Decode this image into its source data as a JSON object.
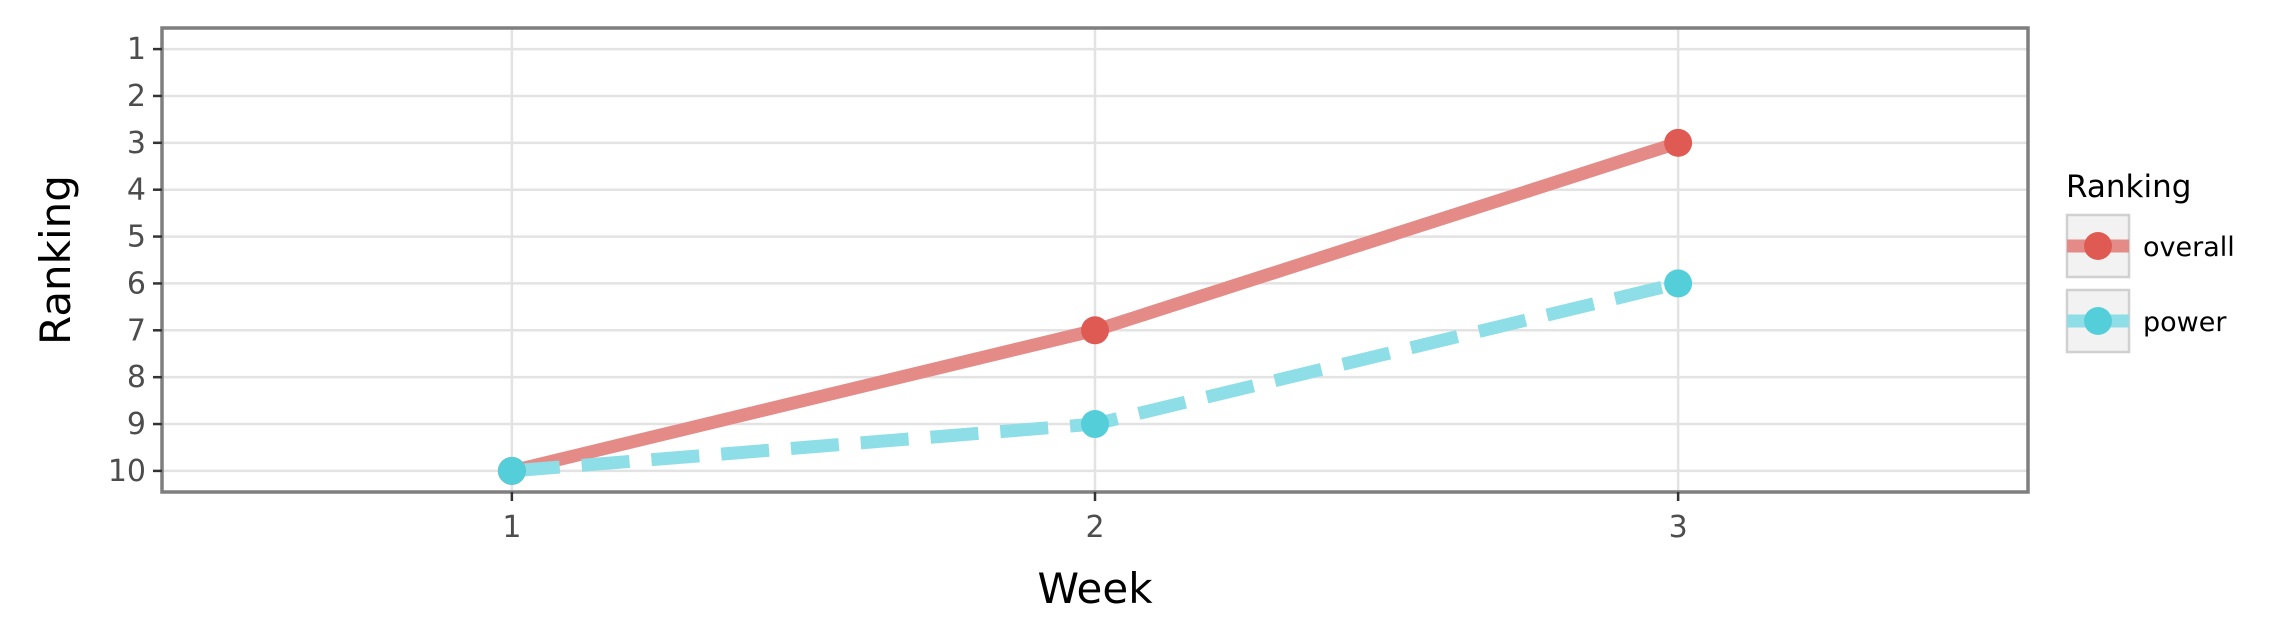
{
  "chart_data": {
    "type": "line",
    "title": "",
    "xlabel": "Week",
    "ylabel": "Ranking",
    "x": [
      1,
      2,
      3
    ],
    "x_ticks": [
      "1",
      "2",
      "3"
    ],
    "xlim": [
      0.4,
      3.6
    ],
    "y_reversed": true,
    "y_ticks": [
      "1",
      "2",
      "3",
      "4",
      "5",
      "6",
      "7",
      "8",
      "9",
      "10"
    ],
    "ylim": [
      0.55,
      10.45
    ],
    "grid": true,
    "legend": {
      "title": "Ranking",
      "placement": "right"
    },
    "series": [
      {
        "name": "overall",
        "values": [
          10,
          7,
          3
        ],
        "color": "#e05a54",
        "line_color": "#e48b87",
        "line_style": "solid"
      },
      {
        "name": "power",
        "values": [
          10,
          9,
          6
        ],
        "color": "#54cfda",
        "line_color": "#8ddee6",
        "line_style": "dashed"
      }
    ]
  }
}
